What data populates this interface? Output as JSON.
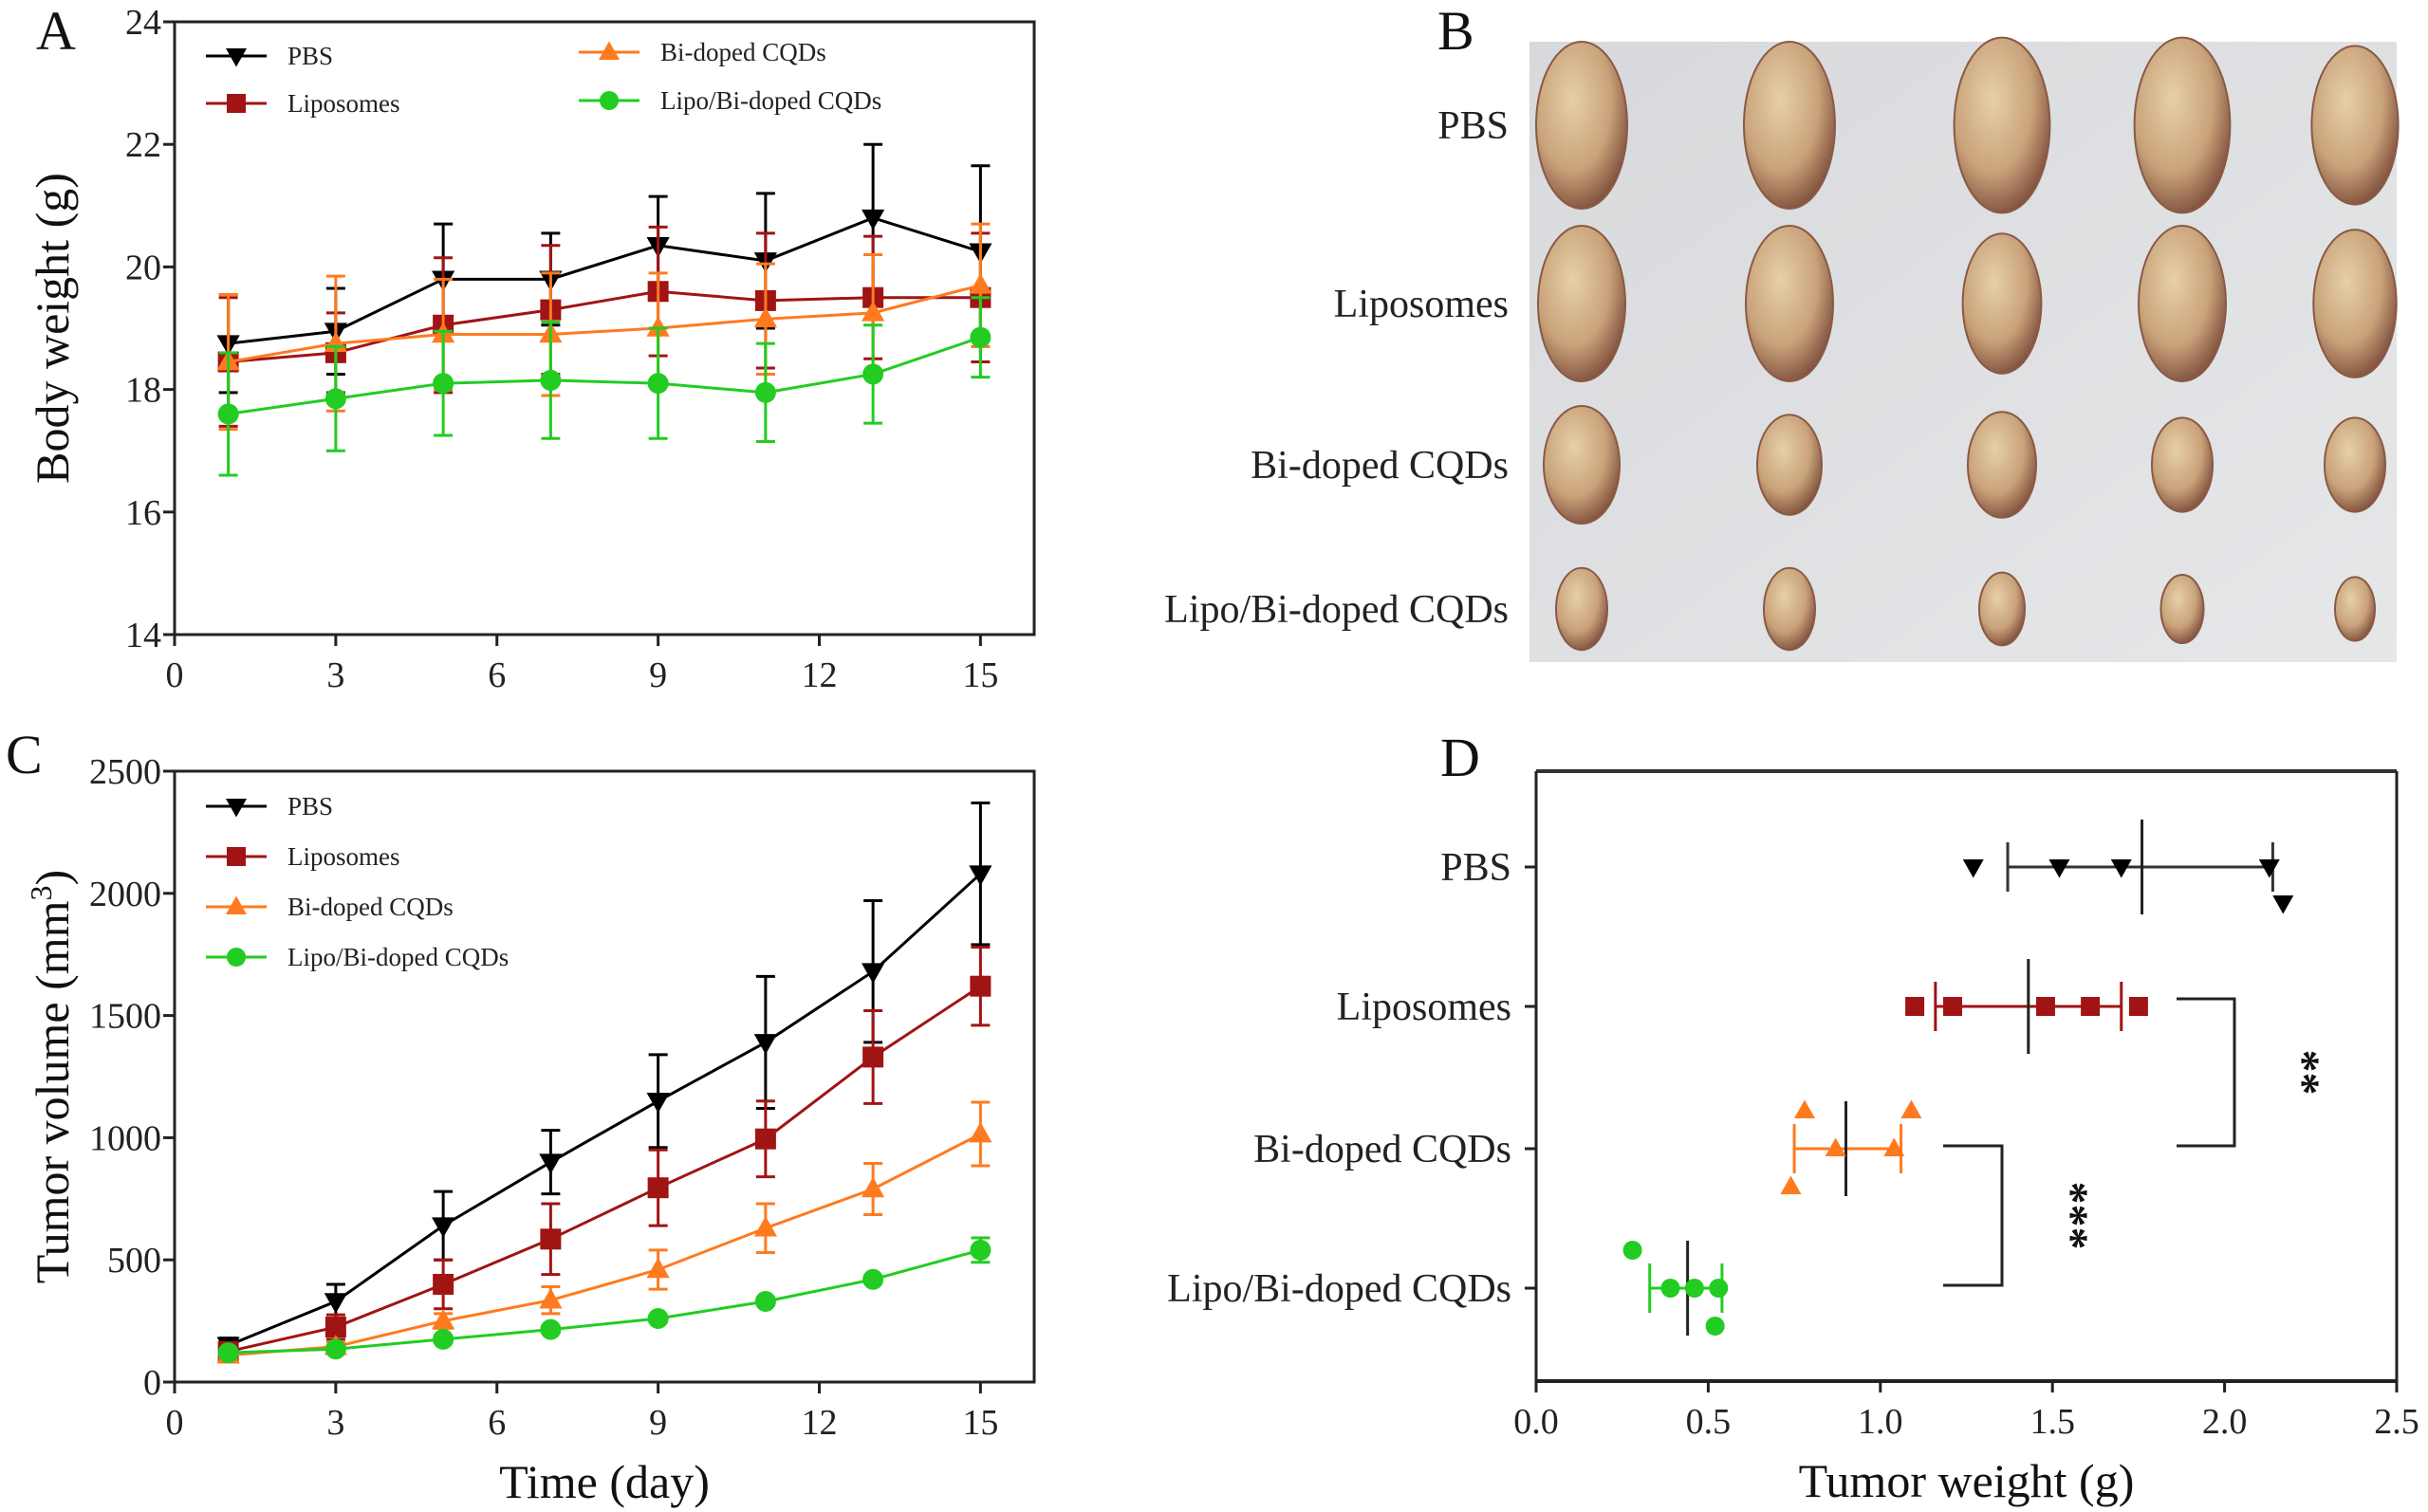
{
  "colors": {
    "PBS": "#000000",
    "Liposomes": "#a01414",
    "Bi-doped CQDs": "#ff7a1f",
    "Lipo/Bi-doped CQDs": "#22cc22"
  },
  "panel_labels": [
    "A",
    "B",
    "C",
    "D"
  ],
  "photo": {
    "row_labels": [
      "PBS",
      "Liposomes",
      "Bi-doped CQDs",
      "Lipo/Bi-doped CQDs"
    ],
    "tumors_per_row": 5
  },
  "chart_data": [
    {
      "panel": "A",
      "type": "line",
      "xlabel": "",
      "ylabel": "Body weight (g)",
      "xlim": [
        0,
        16
      ],
      "ylim": [
        14,
        24
      ],
      "xticks": [
        0,
        3,
        6,
        9,
        12,
        15
      ],
      "yticks": [
        14,
        16,
        18,
        20,
        22,
        24
      ],
      "legend": "top",
      "x": [
        1,
        3,
        5,
        7,
        9,
        11,
        13,
        15
      ],
      "series": [
        {
          "name": "PBS",
          "marker": "triangle-down",
          "values": [
            18.75,
            18.95,
            19.8,
            19.8,
            20.35,
            20.1,
            20.8,
            20.25
          ],
          "errors": [
            0.8,
            0.7,
            0.9,
            0.75,
            0.8,
            1.1,
            1.2,
            1.4
          ]
        },
        {
          "name": "Liposomes",
          "marker": "square",
          "values": [
            18.45,
            18.6,
            19.05,
            19.3,
            19.6,
            19.45,
            19.5,
            19.5
          ],
          "errors": [
            1.05,
            0.65,
            1.1,
            1.05,
            1.05,
            1.1,
            1.0,
            1.05
          ]
        },
        {
          "name": "Bi-doped CQDs",
          "marker": "triangle-up",
          "values": [
            18.45,
            18.75,
            18.9,
            18.9,
            19.0,
            19.15,
            19.25,
            19.7
          ],
          "errors": [
            1.1,
            1.1,
            0.9,
            1.0,
            0.9,
            0.9,
            0.95,
            1.0
          ]
        },
        {
          "name": "Lipo/Bi-doped CQDs",
          "marker": "circle",
          "values": [
            17.6,
            17.85,
            18.1,
            18.15,
            18.1,
            17.95,
            18.25,
            18.85
          ],
          "errors": [
            1.0,
            0.85,
            0.85,
            0.95,
            0.9,
            0.8,
            0.8,
            0.65
          ]
        }
      ]
    },
    {
      "panel": "C",
      "type": "line",
      "xlabel": "Time (day)",
      "ylabel": "Tumor volume (mm",
      "ylabel_sup": "3",
      "ylabel_end": ")",
      "xlim": [
        0,
        16
      ],
      "ylim": [
        0,
        2500
      ],
      "xticks": [
        0,
        3,
        6,
        9,
        12,
        15
      ],
      "yticks": [
        0,
        500,
        1000,
        1500,
        2000,
        2500
      ],
      "legend": "top-left",
      "x": [
        1,
        3,
        5,
        7,
        9,
        11,
        13,
        15
      ],
      "series": [
        {
          "name": "PBS",
          "marker": "triangle-down",
          "values": [
            150,
            330,
            640,
            900,
            1150,
            1390,
            1680,
            2080
          ],
          "errors": [
            30,
            70,
            140,
            130,
            190,
            270,
            290,
            290
          ]
        },
        {
          "name": "Liposomes",
          "marker": "square",
          "values": [
            125,
            225,
            400,
            585,
            795,
            995,
            1330,
            1620
          ],
          "errors": [
            20,
            50,
            100,
            145,
            155,
            155,
            190,
            160
          ]
        },
        {
          "name": "Bi-doped CQDs",
          "marker": "triangle-up",
          "values": [
            110,
            145,
            250,
            335,
            460,
            630,
            790,
            1015
          ],
          "errors": [
            15,
            20,
            30,
            55,
            80,
            100,
            105,
            130
          ]
        },
        {
          "name": "Lipo/Bi-doped CQDs",
          "marker": "circle",
          "values": [
            120,
            135,
            175,
            215,
            260,
            330,
            420,
            540
          ],
          "errors": [
            10,
            10,
            15,
            15,
            15,
            15,
            15,
            50
          ]
        }
      ]
    },
    {
      "panel": "D",
      "type": "scatter",
      "xlabel": "Tumor weight (g)",
      "ylabel": "",
      "xlim": [
        0,
        2.5
      ],
      "xticks": [
        "0.0",
        "0.5",
        "1.0",
        "1.5",
        "2.0",
        "2.5"
      ],
      "categories": [
        "PBS",
        "Liposomes",
        "Bi-doped CQDs",
        "Lipo/Bi-doped CQDs"
      ],
      "groups": [
        {
          "name": "PBS",
          "marker": "triangle-down",
          "points": [
            1.27,
            1.52,
            1.7,
            2.13,
            2.17
          ],
          "mean": 1.76,
          "sd_range": [
            1.37,
            2.14
          ]
        },
        {
          "name": "Liposomes",
          "marker": "square",
          "points": [
            1.1,
            1.21,
            1.48,
            1.61,
            1.75
          ],
          "mean": 1.43,
          "sd_range": [
            1.16,
            1.7
          ]
        },
        {
          "name": "Bi-doped CQDs",
          "marker": "triangle-up",
          "points": [
            0.78,
            0.87,
            1.04,
            1.09,
            0.74
          ],
          "mean": 0.9,
          "sd_range": [
            0.75,
            1.06
          ]
        },
        {
          "name": "Lipo/Bi-doped CQDs",
          "marker": "circle",
          "points": [
            0.28,
            0.39,
            0.46,
            0.53,
            0.52
          ],
          "mean": 0.44,
          "sd_range": [
            0.33,
            0.54
          ]
        }
      ],
      "significance": [
        {
          "between": [
            "Liposomes",
            "Bi-doped CQDs"
          ],
          "label": "**"
        },
        {
          "between": [
            "Bi-doped CQDs",
            "Lipo/Bi-doped CQDs"
          ],
          "label": "***"
        }
      ]
    }
  ]
}
